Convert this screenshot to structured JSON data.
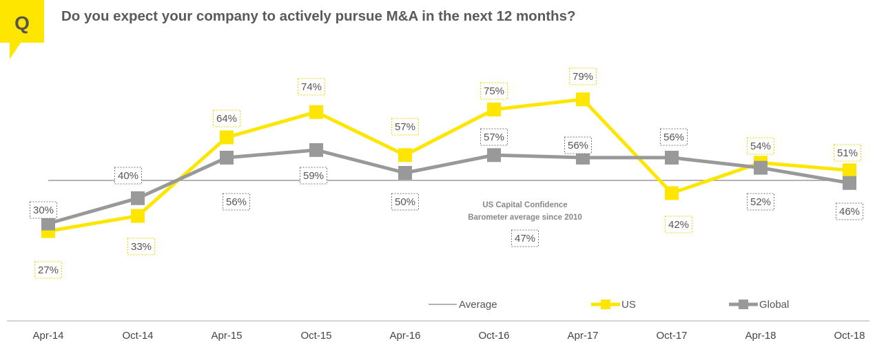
{
  "question_badge": "Q",
  "title": "Do you expect your company to actively pursue M&A in the next 12 months?",
  "colors": {
    "us": "#FFE600",
    "global": "#999999",
    "average": "#9a9a9a",
    "badge": "#FFE600"
  },
  "chart_data": {
    "type": "line",
    "categories": [
      "Apr-14",
      "Oct-14",
      "Apr-15",
      "Oct-15",
      "Apr-16",
      "Oct-16",
      "Apr-17",
      "Oct-17",
      "Apr-18",
      "Oct-18"
    ],
    "series": [
      {
        "name": "US",
        "values": [
          27,
          33,
          64,
          74,
          57,
          75,
          79,
          42,
          54,
          51
        ],
        "labels": [
          "27%",
          "33%",
          "64%",
          "74%",
          "57%",
          "75%",
          "79%",
          "42%",
          "54%",
          "51%"
        ]
      },
      {
        "name": "Global",
        "values": [
          30,
          40,
          56,
          59,
          50,
          57,
          56,
          56,
          52,
          46
        ],
        "labels": [
          "30%",
          "40%",
          "56%",
          "59%",
          "50%",
          "57%",
          "56%",
          "56%",
          "52%",
          "46%"
        ]
      }
    ],
    "average": {
      "name": "Average",
      "value": 47,
      "label": "47%",
      "annotation": [
        "US Capital Confidence",
        "Barometer average since 2010"
      ]
    },
    "legend": [
      "Average",
      "US",
      "Global"
    ],
    "grid": false
  }
}
